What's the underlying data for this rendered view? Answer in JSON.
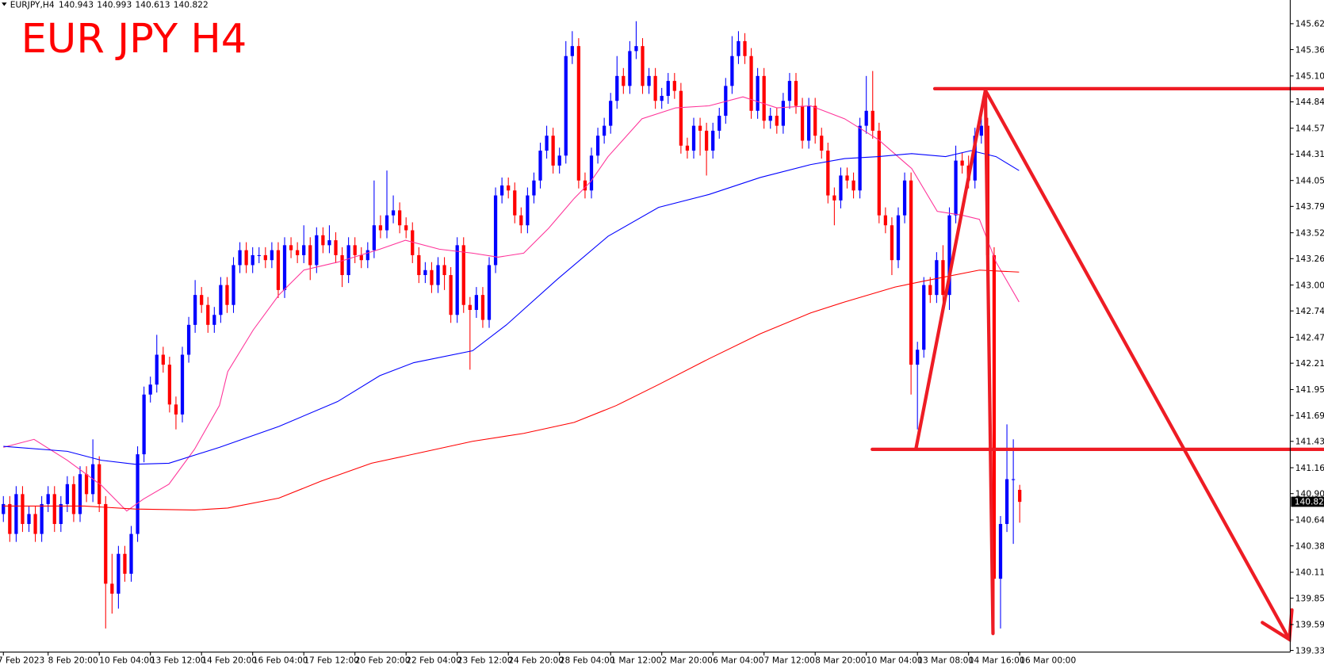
{
  "chart_data": {
    "type": "candlestick",
    "title": "EUR JPY H4",
    "title_color": "#ff0000",
    "symbol": "EURJPY,H4",
    "categories": [
      "7 Feb 2023",
      null,
      null,
      null,
      null,
      null,
      null,
      "8 Feb 20:00",
      null,
      null,
      null,
      null,
      null,
      null,
      null,
      "10 Feb 04:00",
      null,
      null,
      null,
      null,
      null,
      null,
      null,
      "13 Feb 12:00",
      null,
      null,
      null,
      null,
      null,
      null,
      null,
      "14 Feb 20:00",
      null,
      null,
      null,
      null,
      null,
      null,
      null,
      "16 Feb 04:00",
      null,
      null,
      null,
      null,
      null,
      null,
      null,
      "17 Feb 12:00",
      null,
      null,
      null,
      null,
      null,
      null,
      null,
      "20 Feb 20:00",
      null,
      null,
      null,
      null,
      null,
      null,
      null,
      "22 Feb 04:00",
      null,
      null,
      null,
      null,
      null,
      null,
      null,
      "23 Feb 12:00",
      null,
      null,
      null,
      null,
      null,
      null,
      null,
      "24 Feb 20:00",
      null,
      null,
      null,
      null,
      null,
      null,
      null,
      "28 Feb 04:00",
      null,
      null,
      null,
      null,
      null,
      null,
      null,
      "1 Mar 12:00",
      null,
      null,
      null,
      null,
      null,
      null,
      null,
      "2 Mar 20:00",
      null,
      null,
      null,
      null,
      null,
      null,
      null,
      "6 Mar 04:00",
      null,
      null,
      null,
      null,
      null,
      null,
      null,
      "7 Mar 12:00",
      null,
      null,
      null,
      null,
      null,
      null,
      null,
      "8 Mar 20:00",
      null,
      null,
      null,
      null,
      null,
      null,
      null,
      "10 Mar 04:00",
      null,
      null,
      null,
      null,
      null,
      null,
      null,
      "13 Mar 08:00",
      null,
      null,
      null,
      null,
      null,
      null,
      null,
      "14 Mar 16:00",
      null,
      null,
      null,
      null,
      null,
      null,
      null,
      "16 Mar 00:00"
    ],
    "open": [
      140.7,
      140.8,
      140.5,
      140.9,
      140.6,
      140.7,
      140.5,
      140.8,
      140.9,
      140.6,
      140.8,
      141.0,
      140.7,
      141.1,
      140.9,
      141.2,
      140.8,
      140.0,
      139.9,
      140.3,
      140.1,
      140.5,
      141.3,
      141.9,
      142.0,
      142.3,
      142.2,
      141.8,
      141.7,
      142.3,
      142.6,
      142.9,
      142.8,
      142.6,
      142.7,
      143.0,
      142.8,
      143.2,
      143.35,
      143.2,
      143.3,
      143.3,
      143.25,
      143.35,
      142.95,
      143.4,
      143.35,
      143.3,
      143.4,
      143.2,
      143.5,
      143.4,
      143.45,
      143.3,
      143.1,
      143.4,
      143.3,
      143.25,
      143.35,
      143.6,
      143.55,
      143.7,
      143.75,
      143.6,
      143.55,
      143.3,
      143.1,
      143.15,
      143.0,
      143.2,
      143.1,
      142.7,
      143.4,
      142.8,
      142.75,
      142.9,
      142.65,
      143.2,
      143.9,
      144.0,
      143.95,
      143.7,
      143.6,
      143.9,
      144.05,
      144.35,
      144.5,
      144.2,
      144.3,
      145.3,
      145.4,
      144.05,
      143.95,
      144.3,
      144.5,
      144.6,
      144.85,
      145.1,
      145.0,
      145.35,
      145.4,
      145.0,
      145.1,
      144.85,
      144.9,
      145.05,
      144.95,
      144.4,
      144.35,
      144.6,
      144.55,
      144.35,
      144.55,
      144.7,
      145.0,
      145.3,
      145.45,
      145.3,
      144.75,
      145.1,
      144.65,
      144.7,
      144.6,
      144.85,
      145.05,
      144.8,
      144.45,
      144.8,
      144.5,
      144.35,
      143.9,
      143.85,
      144.1,
      144.05,
      143.95,
      144.6,
      144.75,
      144.55,
      143.7,
      143.6,
      143.25,
      143.7,
      144.05,
      142.2,
      142.35,
      143.0,
      142.9,
      143.25,
      142.9,
      143.7,
      144.25,
      144.2,
      144.05,
      144.5,
      144.6,
      143.3,
      140.05,
      140.6,
      141.05,
      140.943
    ],
    "high": [
      140.88,
      140.88,
      140.98,
      140.98,
      140.78,
      140.78,
      140.88,
      140.98,
      140.98,
      140.88,
      141.08,
      141.08,
      141.18,
      141.18,
      141.45,
      141.28,
      140.88,
      140.3,
      140.38,
      140.38,
      140.58,
      141.38,
      141.98,
      142.08,
      142.5,
      142.38,
      142.28,
      141.88,
      142.38,
      142.68,
      143.05,
      142.98,
      142.88,
      142.78,
      143.08,
      143.08,
      143.28,
      143.43,
      143.43,
      143.38,
      143.38,
      143.38,
      143.43,
      143.43,
      143.48,
      143.48,
      143.43,
      143.6,
      143.48,
      143.58,
      143.58,
      143.6,
      143.53,
      143.38,
      143.48,
      143.48,
      143.38,
      143.43,
      144.05,
      143.7,
      144.15,
      143.9,
      143.83,
      143.68,
      143.63,
      143.38,
      143.23,
      143.23,
      143.28,
      143.28,
      143.18,
      143.48,
      143.48,
      142.88,
      142.98,
      142.98,
      143.28,
      143.98,
      144.08,
      144.08,
      144.03,
      143.78,
      143.98,
      144.13,
      144.43,
      144.6,
      144.58,
      144.38,
      145.45,
      145.55,
      145.48,
      144.13,
      144.38,
      144.58,
      144.68,
      144.93,
      145.3,
      145.18,
      145.45,
      145.65,
      145.48,
      145.18,
      145.18,
      144.98,
      145.13,
      145.13,
      145.03,
      144.48,
      144.68,
      144.68,
      144.63,
      144.63,
      144.78,
      145.08,
      145.5,
      145.55,
      145.53,
      145.38,
      145.18,
      145.18,
      144.78,
      144.78,
      144.93,
      145.13,
      145.13,
      144.88,
      144.88,
      144.88,
      144.58,
      144.43,
      143.98,
      144.18,
      144.18,
      144.13,
      144.68,
      145.1,
      145.15,
      144.63,
      143.78,
      143.68,
      143.78,
      144.13,
      144.13,
      142.43,
      143.08,
      143.08,
      143.33,
      143.4,
      143.78,
      144.4,
      144.33,
      144.3,
      144.58,
      144.68,
      144.68,
      143.38,
      140.68,
      141.6,
      141.45,
      140.993
    ],
    "low": [
      140.62,
      140.42,
      140.42,
      140.52,
      140.52,
      140.42,
      140.42,
      140.72,
      140.52,
      140.52,
      140.72,
      140.62,
      140.62,
      140.82,
      140.82,
      140.72,
      139.55,
      139.7,
      139.75,
      140.02,
      140.02,
      140.42,
      141.22,
      141.82,
      141.92,
      142.12,
      141.72,
      141.55,
      141.62,
      142.22,
      142.52,
      142.72,
      142.52,
      142.52,
      142.62,
      142.72,
      142.72,
      143.12,
      143.12,
      143.12,
      143.22,
      143.17,
      143.17,
      142.87,
      142.87,
      143.27,
      143.22,
      143.22,
      143.05,
      143.12,
      143.32,
      143.32,
      143.22,
      142.98,
      143.02,
      143.22,
      143.17,
      143.17,
      143.27,
      143.47,
      143.47,
      143.62,
      143.52,
      143.47,
      143.22,
      143.02,
      143.02,
      142.92,
      142.92,
      142.95,
      142.62,
      142.62,
      142.72,
      142.15,
      142.67,
      142.57,
      142.57,
      143.12,
      143.82,
      143.87,
      143.62,
      143.52,
      143.52,
      143.82,
      143.97,
      144.27,
      144.12,
      144.12,
      144.22,
      145.22,
      143.97,
      143.87,
      143.87,
      144.22,
      144.42,
      144.52,
      144.77,
      144.92,
      144.92,
      145.27,
      144.92,
      144.92,
      144.77,
      144.77,
      144.82,
      144.87,
      144.32,
      144.27,
      144.27,
      144.3,
      144.1,
      144.27,
      144.47,
      144.62,
      144.92,
      145.22,
      145.22,
      144.67,
      144.67,
      144.57,
      144.57,
      144.52,
      144.52,
      144.77,
      144.72,
      144.37,
      144.37,
      144.42,
      144.27,
      143.82,
      143.6,
      143.77,
      143.97,
      143.87,
      143.87,
      144.52,
      144.47,
      143.62,
      143.52,
      143.1,
      143.17,
      143.62,
      141.9,
      141.55,
      142.27,
      142.82,
      142.82,
      142.82,
      142.75,
      143.62,
      144.12,
      143.97,
      143.97,
      144.42,
      143.22,
      139.5,
      139.55,
      140.52,
      140.4,
      140.613
    ],
    "close": [
      140.8,
      140.5,
      140.9,
      140.6,
      140.7,
      140.5,
      140.8,
      140.9,
      140.6,
      140.8,
      141.0,
      140.7,
      141.1,
      140.9,
      141.2,
      140.8,
      140.0,
      139.9,
      140.3,
      140.1,
      140.5,
      141.3,
      141.9,
      142.0,
      142.3,
      142.2,
      141.8,
      141.7,
      142.3,
      142.6,
      142.9,
      142.8,
      142.6,
      142.7,
      143.0,
      142.8,
      143.2,
      143.35,
      143.2,
      143.3,
      143.3,
      143.25,
      143.35,
      142.95,
      143.4,
      143.35,
      143.3,
      143.4,
      143.2,
      143.5,
      143.4,
      143.45,
      143.3,
      143.1,
      143.4,
      143.3,
      143.25,
      143.35,
      143.6,
      143.55,
      143.7,
      143.75,
      143.6,
      143.55,
      143.3,
      143.1,
      143.15,
      143.0,
      143.2,
      143.1,
      142.7,
      143.4,
      142.8,
      142.75,
      142.9,
      142.65,
      143.2,
      143.9,
      144.0,
      143.95,
      143.7,
      143.6,
      143.9,
      144.05,
      144.35,
      144.5,
      144.2,
      144.3,
      145.3,
      145.4,
      144.05,
      143.95,
      144.3,
      144.5,
      144.6,
      144.85,
      145.1,
      145.0,
      145.35,
      145.4,
      145.0,
      145.1,
      144.85,
      144.9,
      145.05,
      144.95,
      144.4,
      144.35,
      144.6,
      144.55,
      144.35,
      144.55,
      144.7,
      145.0,
      145.3,
      145.45,
      145.3,
      144.75,
      145.1,
      144.65,
      144.7,
      144.6,
      144.85,
      145.05,
      144.8,
      144.45,
      144.8,
      144.5,
      144.35,
      143.9,
      143.85,
      144.1,
      144.05,
      143.95,
      144.6,
      144.75,
      144.55,
      143.7,
      143.6,
      143.25,
      143.7,
      144.05,
      142.2,
      142.35,
      143.0,
      142.9,
      143.25,
      142.9,
      143.7,
      144.25,
      144.2,
      144.05,
      144.5,
      144.6,
      143.3,
      140.05,
      140.6,
      141.05,
      141.05,
      140.822
    ],
    "up_color": "#0000ff",
    "down_color": "#ff0000",
    "indicators": [
      {
        "color": "#ff3399",
        "x": [
          0,
          4.8,
          10,
          15.3,
          19.3,
          21.9,
          25.9,
          29.9,
          33.8,
          35.1,
          39.1,
          43.1,
          47,
          52.3,
          58.9,
          62.9,
          68.2,
          73.4,
          77.4,
          81.4,
          85.3,
          89.3,
          91.9,
          94.6,
          99.9,
          105.2,
          110.4,
          115.7,
          121,
          126.3,
          131.6,
          136.9,
          142.1,
          146.1,
          150.1,
          152.7,
          155.3,
          158.9
        ],
        "values": [
          141.37,
          141.45,
          141.24,
          140.99,
          140.73,
          140.85,
          141.0,
          141.35,
          141.79,
          142.13,
          142.55,
          142.9,
          143.15,
          143.23,
          143.36,
          143.45,
          143.36,
          143.32,
          143.28,
          143.32,
          143.57,
          143.87,
          144.04,
          144.29,
          144.67,
          144.78,
          144.8,
          144.89,
          144.78,
          144.8,
          144.67,
          144.46,
          144.17,
          143.74,
          143.7,
          143.66,
          143.23,
          142.83
        ]
      },
      {
        "color": "#0000ff",
        "x": [
          0,
          10,
          15.3,
          20.6,
          25.9,
          33.8,
          43.1,
          52.3,
          58.9,
          64.2,
          73.4,
          78.7,
          86.7,
          94.6,
          102.5,
          110.4,
          118.4,
          126.3,
          131.6,
          136.9,
          142.1,
          147.4,
          151.4,
          155.3,
          158.9
        ],
        "values": [
          141.38,
          141.33,
          141.24,
          141.2,
          141.21,
          141.37,
          141.58,
          141.83,
          142.09,
          142.22,
          142.34,
          142.6,
          143.06,
          143.49,
          143.78,
          143.91,
          144.08,
          144.21,
          144.27,
          144.29,
          144.32,
          144.29,
          144.35,
          144.29,
          144.15
        ]
      },
      {
        "color": "#ff0000",
        "x": [
          0,
          12.7,
          20.6,
          29.9,
          35.1,
          43.1,
          49.7,
          57.6,
          65.5,
          73.4,
          81.4,
          89.3,
          95.9,
          102.5,
          110.4,
          118.4,
          126.3,
          131.6,
          139.5,
          144.8,
          152.7,
          158.9
        ],
        "values": [
          140.78,
          140.78,
          140.75,
          140.74,
          140.76,
          140.86,
          141.03,
          141.21,
          141.32,
          141.43,
          141.51,
          141.62,
          141.79,
          142.0,
          142.26,
          142.51,
          142.72,
          142.83,
          142.98,
          143.05,
          143.15,
          143.13
        ]
      }
    ],
    "ylim": [
      139.313,
      145.863
    ],
    "yticks": [
      145.625,
      145.365,
      {
        "value": 145.1,
        "label": "145.100"
      },
      {
        "value": 144.84,
        "label": "144.840"
      },
      144.575,
      144.315,
      {
        "value": 144.05,
        "label": "144.050"
      },
      {
        "value": 143.79,
        "label": "143.790"
      },
      143.525,
      143.265,
      {
        "value": 143.0,
        "label": "143.000"
      },
      {
        "value": 142.74,
        "label": "142.740"
      },
      142.475,
      142.215,
      {
        "value": 141.95,
        "label": "141.950"
      },
      {
        "value": 141.69,
        "label": "141.690"
      },
      {
        "value": 141.43,
        "label": "141.430"
      },
      141.165,
      140.905,
      {
        "value": 140.64,
        "label": "140.640"
      },
      {
        "value": 140.38,
        "label": "140.380"
      },
      140.115,
      139.855,
      {
        "value": 139.59,
        "label": "139.590"
      },
      {
        "value": 139.33,
        "label": "139.330"
      }
    ],
    "grid": false
  }
}
